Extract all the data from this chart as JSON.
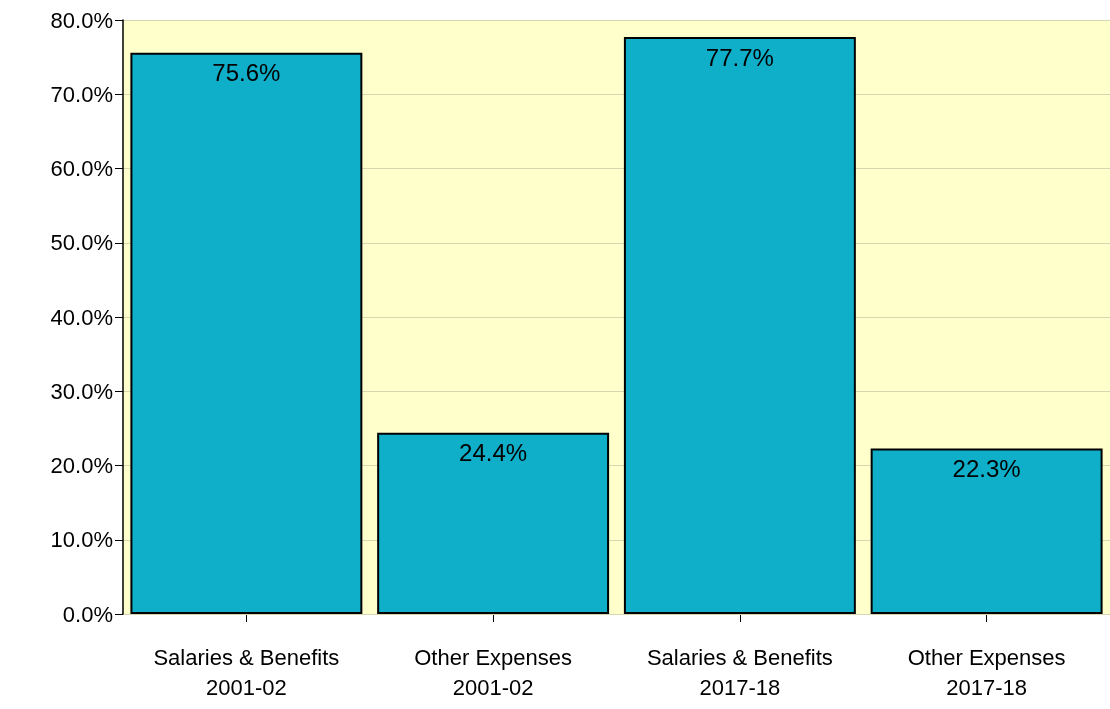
{
  "chart_data": {
    "type": "bar",
    "categories": [
      "Salaries & Benefits\n2001-02",
      "Other Expenses\n2001-02",
      "Salaries & Benefits\n2017-18",
      "Other Expenses\n2017-18"
    ],
    "values": [
      75.6,
      24.4,
      77.7,
      22.3
    ],
    "value_labels": [
      "75.6%",
      "24.4%",
      "77.7%",
      "22.3%"
    ],
    "color": "#0fafca",
    "ylim": [
      0,
      80
    ],
    "yticks": [
      {
        "value": 0,
        "label": "0.0%"
      },
      {
        "value": 10,
        "label": "10.0%"
      },
      {
        "value": 20,
        "label": "20.0%"
      },
      {
        "value": 30,
        "label": "30.0%"
      },
      {
        "value": 40,
        "label": "40.0%"
      },
      {
        "value": 50,
        "label": "50.0%"
      },
      {
        "value": 60,
        "label": "60.0%"
      },
      {
        "value": 70,
        "label": "70.0%"
      },
      {
        "value": 80,
        "label": "80.0%"
      }
    ],
    "bands": [
      {
        "axis": "y",
        "from": 0,
        "to": 80,
        "color": "#ffffcc"
      }
    ],
    "grid": true
  }
}
